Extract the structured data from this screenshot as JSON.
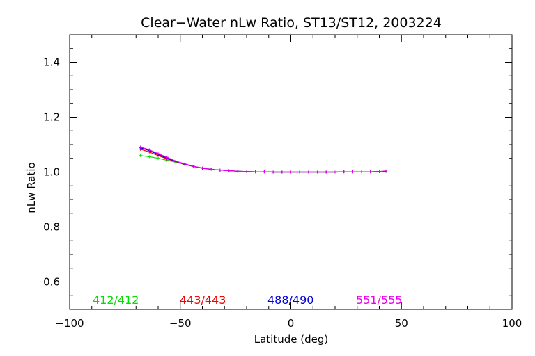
{
  "chart_data": {
    "type": "line",
    "title": "Clear−Water nLw Ratio, ST13/ST12, 2003224",
    "xlabel": "Latitude (deg)",
    "ylabel": "nLw Ratio",
    "xlim": [
      -100,
      100
    ],
    "ylim": [
      0.5,
      1.5
    ],
    "xticks": [
      -100,
      -50,
      0,
      50,
      100
    ],
    "yticks": [
      0.6,
      0.8,
      1.0,
      1.2,
      1.4
    ],
    "xtick_labels": [
      "−100",
      "−50",
      "0",
      "50",
      "100"
    ],
    "ytick_labels": [
      "0.6",
      "0.8",
      "1.0",
      "1.2",
      "1.4"
    ],
    "reference_line": 1.0,
    "grid": false,
    "legend_position": "bottom-inside",
    "series": [
      {
        "name": "412/412",
        "color": "#00dd00",
        "x": [
          -68,
          -64,
          -60,
          -56,
          -52,
          -48,
          -44,
          -40,
          -36,
          -32,
          -28,
          -24,
          -20,
          -16,
          -12,
          -8,
          -4,
          0,
          4,
          8,
          12,
          16,
          20,
          24,
          28,
          32,
          36,
          40,
          43
        ],
        "y": [
          1.06,
          1.056,
          1.05,
          1.043,
          1.036,
          1.028,
          1.021,
          1.015,
          1.01,
          1.007,
          1.005,
          1.003,
          1.002,
          1.001,
          1.001,
          1.0,
          1.0,
          1.0,
          1.0,
          1.0,
          1.0,
          1.0,
          1.0,
          1.001,
          1.001,
          1.001,
          1.001,
          1.002,
          1.003
        ]
      },
      {
        "name": "443/443",
        "color": "#ee0000",
        "x": [
          -68,
          -64,
          -60,
          -56,
          -52,
          -48,
          -44,
          -40,
          -36,
          -32,
          -28,
          -24,
          -20,
          -16,
          -12,
          -8,
          -4,
          0,
          4,
          8,
          12,
          16,
          20,
          24,
          28,
          32,
          36,
          40,
          43
        ],
        "y": [
          1.083,
          1.073,
          1.06,
          1.048,
          1.038,
          1.028,
          1.02,
          1.014,
          1.01,
          1.007,
          1.005,
          1.003,
          1.002,
          1.001,
          1.001,
          1.0,
          1.0,
          1.0,
          1.0,
          1.0,
          1.0,
          1.0,
          1.0,
          1.001,
          1.001,
          1.001,
          1.001,
          1.002,
          1.003
        ]
      },
      {
        "name": "488/490",
        "color": "#0000dd",
        "x": [
          -68,
          -64,
          -60,
          -56,
          -52,
          -48,
          -44,
          -40,
          -36,
          -32,
          -28,
          -24,
          -20,
          -16,
          -12,
          -8,
          -4,
          0,
          4,
          8,
          12,
          16,
          20,
          24,
          28,
          32,
          36,
          40,
          43
        ],
        "y": [
          1.088,
          1.078,
          1.064,
          1.051,
          1.039,
          1.029,
          1.021,
          1.014,
          1.01,
          1.007,
          1.005,
          1.003,
          1.002,
          1.001,
          1.001,
          1.0,
          1.0,
          1.0,
          1.0,
          1.0,
          1.0,
          1.0,
          1.0,
          1.001,
          1.001,
          1.001,
          1.001,
          1.002,
          1.003
        ]
      },
      {
        "name": "551/555",
        "color": "#ee00ee",
        "x": [
          -68,
          -64,
          -60,
          -56,
          -52,
          -48,
          -44,
          -40,
          -36,
          -32,
          -28,
          -24,
          -20,
          -16,
          -12,
          -8,
          -4,
          0,
          4,
          8,
          12,
          16,
          20,
          24,
          28,
          32,
          36,
          40,
          43
        ],
        "y": [
          1.091,
          1.081,
          1.067,
          1.054,
          1.04,
          1.03,
          1.021,
          1.015,
          1.01,
          1.007,
          1.005,
          1.003,
          1.002,
          1.001,
          1.001,
          1.0,
          1.0,
          1.0,
          1.0,
          1.0,
          1.0,
          1.0,
          1.0,
          1.001,
          1.001,
          1.001,
          1.001,
          1.002,
          1.004
        ]
      }
    ]
  }
}
